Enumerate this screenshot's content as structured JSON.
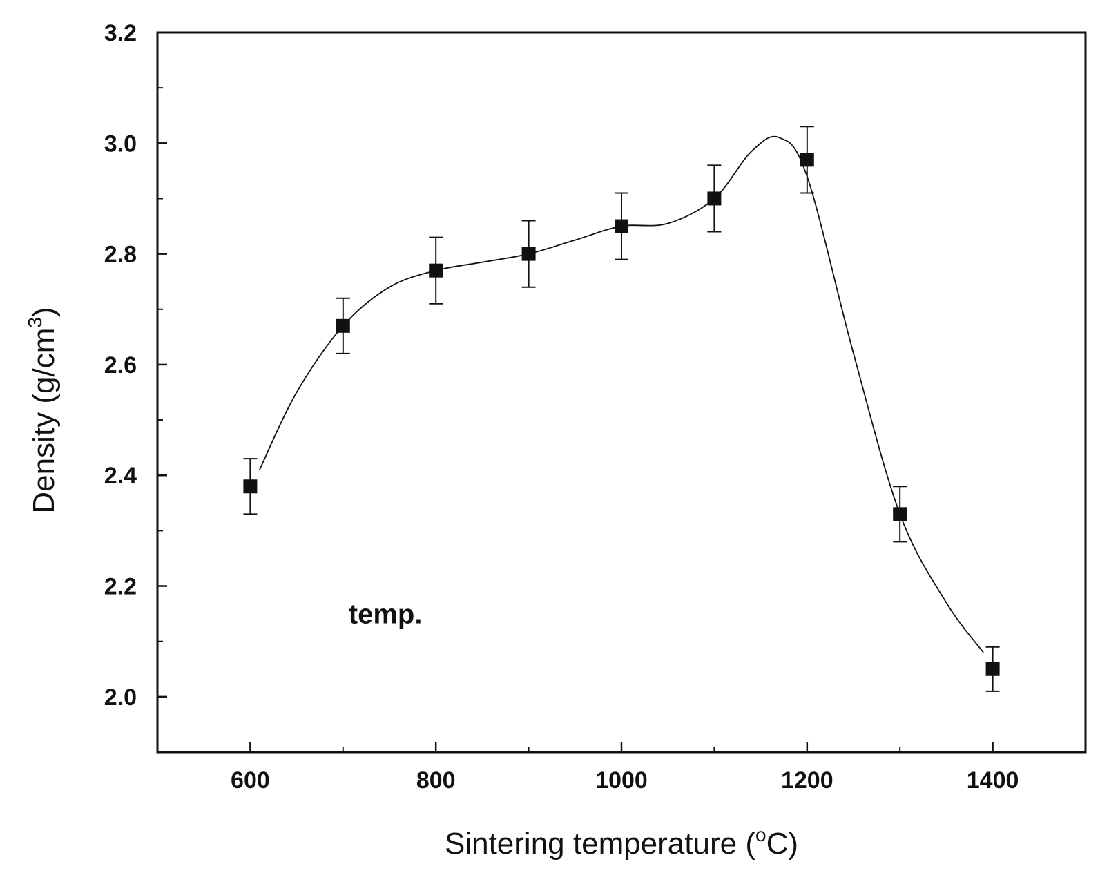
{
  "chart_data": {
    "type": "scatter",
    "title": "",
    "xlabel": "Sintering  temperature (",
    "xlabel_unit_sup": "o",
    "xlabel_unit_tail": "C)",
    "ylabel": "Density (g/cm",
    "ylabel_sup": "3",
    "ylabel_tail": ")",
    "xlim": [
      500,
      1500
    ],
    "ylim": [
      1.9,
      3.2
    ],
    "xticks": [
      600,
      800,
      1000,
      1200,
      1400
    ],
    "xtick_labels": [
      "600",
      "800",
      "1000",
      "1200",
      "1400"
    ],
    "xticks_minor": [
      700,
      900,
      1100,
      1300
    ],
    "yticks": [
      2.0,
      2.2,
      2.4,
      2.6,
      2.8,
      3.0,
      3.2
    ],
    "ytick_labels": [
      "2.0",
      "2.2",
      "2.4",
      "2.6",
      "2.8",
      "3.0",
      "3.2"
    ],
    "yticks_minor": [
      2.1,
      2.3,
      2.5,
      2.7,
      2.9,
      3.1
    ],
    "series": [
      {
        "name": "temp.",
        "marker": "square",
        "x": [
          600,
          700,
          800,
          900,
          1000,
          1100,
          1200,
          1300,
          1400
        ],
        "y": [
          2.38,
          2.67,
          2.77,
          2.8,
          2.85,
          2.9,
          2.97,
          2.33,
          2.05
        ],
        "error": [
          0.05,
          0.05,
          0.06,
          0.06,
          0.06,
          0.06,
          0.06,
          0.05,
          0.04
        ]
      }
    ],
    "fit_curve": {
      "x": [
        610,
        650,
        700,
        750,
        800,
        850,
        900,
        950,
        1000,
        1050,
        1100,
        1140,
        1170,
        1200,
        1250,
        1300,
        1350,
        1390
      ],
      "y": [
        2.41,
        2.55,
        2.67,
        2.74,
        2.77,
        2.785,
        2.8,
        2.825,
        2.85,
        2.855,
        2.9,
        2.985,
        3.01,
        2.94,
        2.62,
        2.33,
        2.17,
        2.08
      ]
    },
    "annotations": [
      {
        "text": "temp.",
        "x": 700,
        "y": 2.15
      }
    ],
    "grid": false,
    "color": "#111111"
  }
}
